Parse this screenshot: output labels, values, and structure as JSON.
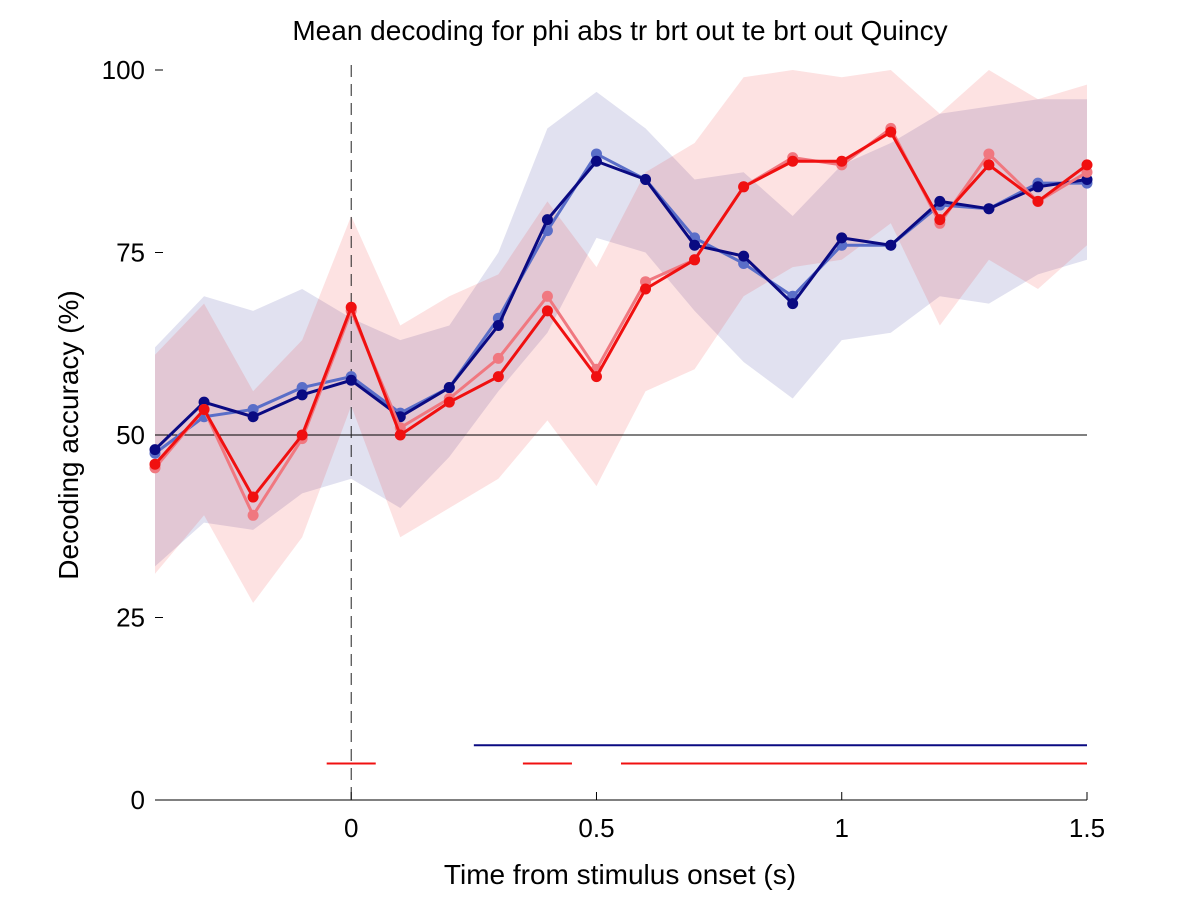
{
  "chart_data": {
    "type": "line",
    "title": "Mean decoding for phi abs tr brt out te brt out  Quincy",
    "xlabel": "Time from stimulus onset (s)",
    "ylabel": "Decoding accuracy (%)",
    "xlim": [
      -0.4,
      1.5
    ],
    "ylim": [
      0,
      100
    ],
    "x_ticks": [
      0,
      0.5,
      1,
      1.5
    ],
    "x_tick_labels": [
      "0",
      "0.5",
      "1",
      "1.5"
    ],
    "y_ticks": [
      0,
      25,
      50,
      75,
      100
    ],
    "y_tick_labels": [
      "0",
      "25",
      "50",
      "75",
      "100"
    ],
    "chance_level": 50,
    "onset_marker_x": 0,
    "grid": false,
    "legend": "none",
    "x": [
      -0.4,
      -0.3,
      -0.2,
      -0.1,
      0.0,
      0.1,
      0.2,
      0.3,
      0.4,
      0.5,
      0.6,
      0.7,
      0.8,
      0.9,
      1.0,
      1.1,
      1.2,
      1.3,
      1.4,
      1.5
    ],
    "series": [
      {
        "color": "#5a6ec8",
        "values": [
          47.5,
          52.5,
          53.5,
          56.5,
          58.0,
          53.0,
          56.5,
          66.0,
          78.0,
          88.5,
          85.0,
          77.0,
          73.5,
          69.0,
          76.0,
          76.0,
          81.5,
          81.0,
          84.5,
          84.5
        ]
      },
      {
        "color": "#0a0a82",
        "values": [
          48.0,
          54.5,
          52.5,
          55.5,
          57.5,
          52.5,
          56.5,
          65.0,
          79.5,
          87.5,
          85.0,
          76.0,
          74.5,
          68.0,
          77.0,
          76.0,
          82.0,
          81.0,
          84.0,
          85.0
        ],
        "band": {
          "upper": [
            62.0,
            69.0,
            67.0,
            70.0,
            66.0,
            63.0,
            65.0,
            75.0,
            92.0,
            97.0,
            92.0,
            85.0,
            86.0,
            80.0,
            87.0,
            90.0,
            94.0,
            95.0,
            96.0,
            96.0
          ],
          "lower": [
            32.0,
            38.0,
            37.0,
            42.0,
            44.0,
            40.0,
            47.0,
            56.0,
            64.0,
            77.0,
            75.0,
            67.0,
            60.0,
            55.0,
            63.0,
            64.0,
            69.0,
            68.0,
            72.0,
            74.0
          ]
        }
      },
      {
        "color": "#f07880",
        "values": [
          45.5,
          53.5,
          39.0,
          49.5,
          67.0,
          51.0,
          55.0,
          60.5,
          69.0,
          59.0,
          71.0,
          74.0,
          84.0,
          88.0,
          87.0,
          92.0,
          79.0,
          88.5,
          82.0,
          86.0
        ]
      },
      {
        "color": "#f01010",
        "values": [
          46.0,
          53.5,
          41.5,
          50.0,
          67.5,
          50.0,
          54.5,
          58.0,
          67.0,
          58.0,
          70.0,
          74.0,
          84.0,
          87.5,
          87.5,
          91.5,
          79.5,
          87.0,
          82.0,
          87.0
        ],
        "band": {
          "upper": [
            61.0,
            68.0,
            56.0,
            63.0,
            80.0,
            65.0,
            69.0,
            72.0,
            82.0,
            73.0,
            86.0,
            90.0,
            99.0,
            100.0,
            99.0,
            100.0,
            94.0,
            100.0,
            96.0,
            98.0
          ],
          "lower": [
            31.0,
            39.0,
            27.0,
            36.0,
            54.0,
            36.0,
            40.0,
            44.0,
            52.0,
            43.0,
            56.0,
            59.0,
            69.0,
            73.0,
            74.0,
            79.0,
            65.0,
            74.0,
            70.0,
            76.0
          ]
        }
      }
    ],
    "significance_bars": [
      {
        "color": "#0a0a82",
        "y": 7.5,
        "segments": [
          [
            0.25,
            1.5
          ]
        ]
      },
      {
        "color": "#f01010",
        "y": 5.0,
        "segments": [
          [
            -0.05,
            0.05
          ],
          [
            0.35,
            0.45
          ],
          [
            0.55,
            1.5
          ]
        ]
      }
    ]
  }
}
